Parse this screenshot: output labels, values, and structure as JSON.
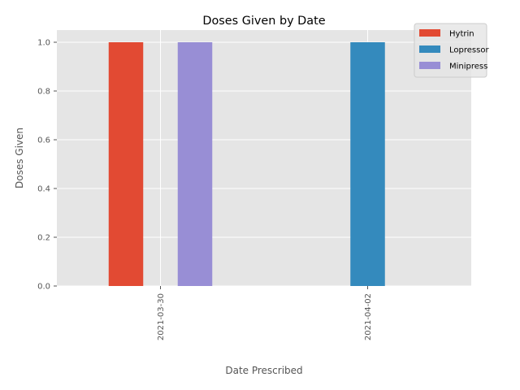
{
  "chart_data": {
    "type": "bar",
    "title": "Doses Given by Date",
    "xlabel": "Date Prescribed",
    "ylabel": "Doses Given",
    "categories": [
      "2021-03-30",
      "2021-04-02"
    ],
    "series": [
      {
        "name": "Hytrin",
        "values": [
          1,
          0
        ],
        "color": "#E24A33"
      },
      {
        "name": "Lopressor",
        "values": [
          0,
          1
        ],
        "color": "#348ABD"
      },
      {
        "name": "Minipress",
        "values": [
          1,
          0
        ],
        "color": "#988ED5"
      }
    ],
    "ylim": [
      0,
      1.05
    ],
    "yticks": [
      "0.0",
      "0.2",
      "0.4",
      "0.6",
      "0.8",
      "1.0"
    ],
    "grid": true,
    "legend_position": "top-right",
    "background_color": "#E5E5E5",
    "grid_color": "#FFFFFF"
  }
}
